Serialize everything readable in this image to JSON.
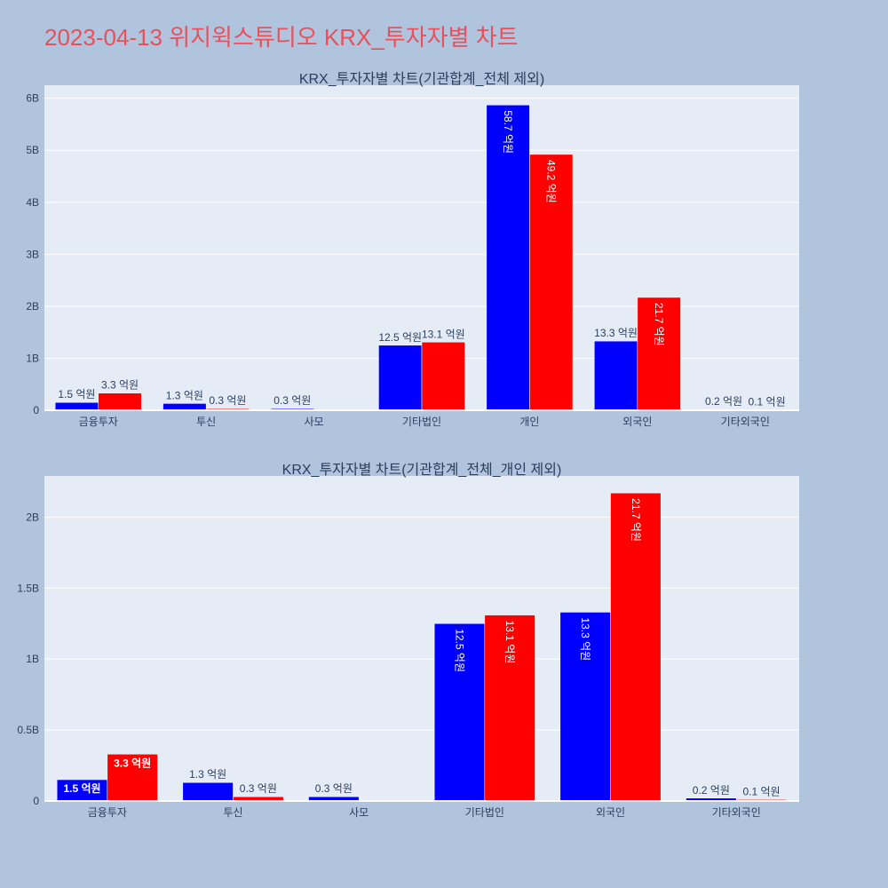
{
  "page_title": "2023-04-13 위지윅스튜디오 KRX_투자자별 차트",
  "colors": {
    "background": "#b0c4de",
    "plot_bg": "#e5ecf6",
    "title": "#e8505b",
    "series_a": "#0000ff",
    "series_b": "#ff0000"
  },
  "chart_data": [
    {
      "type": "bar",
      "title": "KRX_투자자별 차트(기관합계_전체 제외)",
      "categories": [
        "금융투자",
        "투신",
        "사모",
        "기타법인",
        "개인",
        "외국인",
        "기타외국인"
      ],
      "series": [
        {
          "color": "#0000ff",
          "values": [
            150000000,
            130000000,
            30000000,
            1250000000,
            5870000000,
            1330000000,
            20000000
          ],
          "labels": [
            "1.5 억원",
            "1.3 억원",
            "0.3 억원",
            "12.5 억원",
            "58.7 억원",
            "13.3 억원",
            "0.2 억원"
          ]
        },
        {
          "color": "#ff0000",
          "values": [
            330000000,
            30000000,
            0,
            1310000000,
            4920000000,
            2170000000,
            10000000
          ],
          "labels": [
            "3.3 억원",
            "0.3 억원",
            "",
            "13.1 억원",
            "49.2 억원",
            "21.7 억원",
            "0.1 억원"
          ]
        }
      ],
      "ylim": [
        0,
        6250000000
      ],
      "yticks": [
        0,
        1000000000,
        2000000000,
        3000000000,
        4000000000,
        5000000000,
        6000000000
      ],
      "ytick_labels": [
        "0",
        "1B",
        "2B",
        "3B",
        "4B",
        "5B",
        "6B"
      ],
      "grid": true
    },
    {
      "type": "bar",
      "title": "KRX_투자자별 차트(기관합계_전체_개인 제외)",
      "categories": [
        "금융투자",
        "투신",
        "사모",
        "기타법인",
        "외국인",
        "기타외국인"
      ],
      "series": [
        {
          "color": "#0000ff",
          "values": [
            150000000,
            130000000,
            30000000,
            1250000000,
            1330000000,
            20000000
          ],
          "labels": [
            "1.5 억원",
            "1.3 억원",
            "0.3 억원",
            "12.5 억원",
            "13.3 억원",
            "0.2 억원"
          ]
        },
        {
          "color": "#ff0000",
          "values": [
            330000000,
            30000000,
            0,
            1310000000,
            2170000000,
            10000000
          ],
          "labels": [
            "3.3 억원",
            "0.3 억원",
            "",
            "13.1 억원",
            "21.7 억원",
            "0.1 억원"
          ]
        }
      ],
      "ylim": [
        0,
        2290000000
      ],
      "yticks": [
        0,
        500000000,
        1000000000,
        1500000000,
        2000000000
      ],
      "ytick_labels": [
        "0",
        "0.5B",
        "1B",
        "1.5B",
        "2B"
      ],
      "grid": true
    }
  ]
}
